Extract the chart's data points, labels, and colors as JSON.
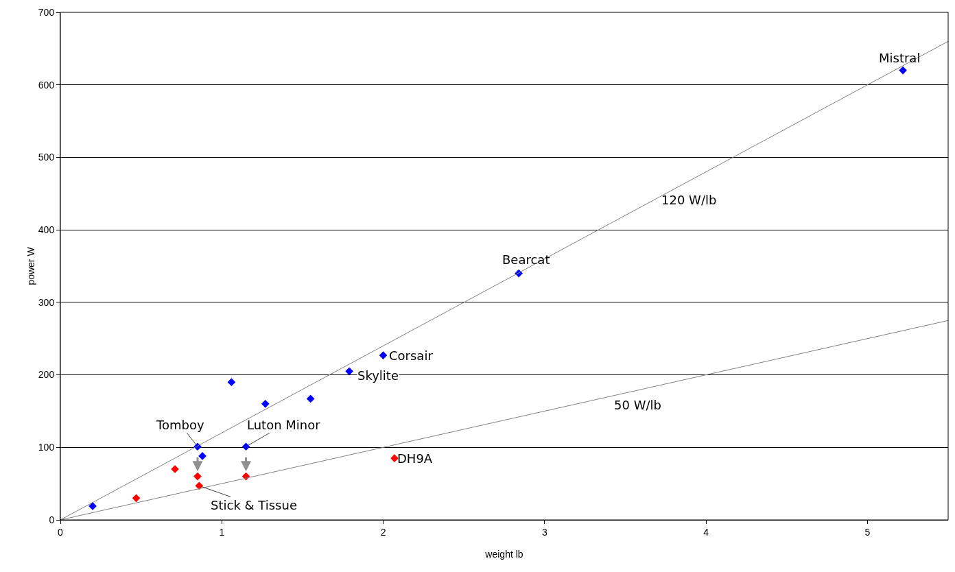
{
  "chart_data": {
    "type": "scatter",
    "xlabel": "weight lb",
    "ylabel": "power W",
    "marker": "diamond",
    "grid": "y",
    "xlim": [
      0,
      5.5
    ],
    "xticks": [
      0,
      1,
      2,
      3,
      4,
      5
    ],
    "ylim": [
      0,
      700
    ],
    "yticks": [
      0,
      100,
      200,
      300,
      400,
      500,
      600,
      700
    ],
    "series": [
      {
        "color": "#0000ff",
        "x": [
          0.2,
          0.85,
          0.88,
          1.06,
          1.27,
          1.55,
          1.15,
          1.79,
          2.0,
          2.84,
          5.22
        ],
        "values": [
          19,
          101,
          88,
          190,
          160,
          167,
          101,
          205,
          227,
          340,
          620
        ]
      },
      {
        "color": "#ff0000",
        "x": [
          0.47,
          0.71,
          0.85,
          0.86,
          1.15,
          2.07
        ],
        "values": [
          30,
          70,
          60,
          47,
          60,
          85
        ]
      },
      {
        "type": "line",
        "marker": "none",
        "color": "#808080",
        "x": [
          0,
          5.5
        ],
        "values": [
          0,
          660
        ]
      },
      {
        "type": "line",
        "marker": "none",
        "color": "#808080",
        "x": [
          0,
          5.5
        ],
        "values": [
          0,
          275
        ]
      }
    ],
    "annotations": [
      {
        "text": "Mistral",
        "x": 5.22,
        "y": 620
      },
      {
        "text": "Bearcat",
        "x": 2.84,
        "y": 340
      },
      {
        "text": "Corsair",
        "x": 2.0,
        "y": 227
      },
      {
        "text": "Skylite",
        "x": 1.79,
        "y": 205
      },
      {
        "text": "Tomboy",
        "x": 0.85,
        "y": 101
      },
      {
        "text": "Luton Minor",
        "x": 1.15,
        "y": 101
      },
      {
        "text": "Stick & Tissue",
        "x": 0.86,
        "y": 47
      },
      {
        "text": "DH9A",
        "x": 2.07,
        "y": 85
      },
      "120 W/lb",
      "50 W/lb"
    ]
  }
}
